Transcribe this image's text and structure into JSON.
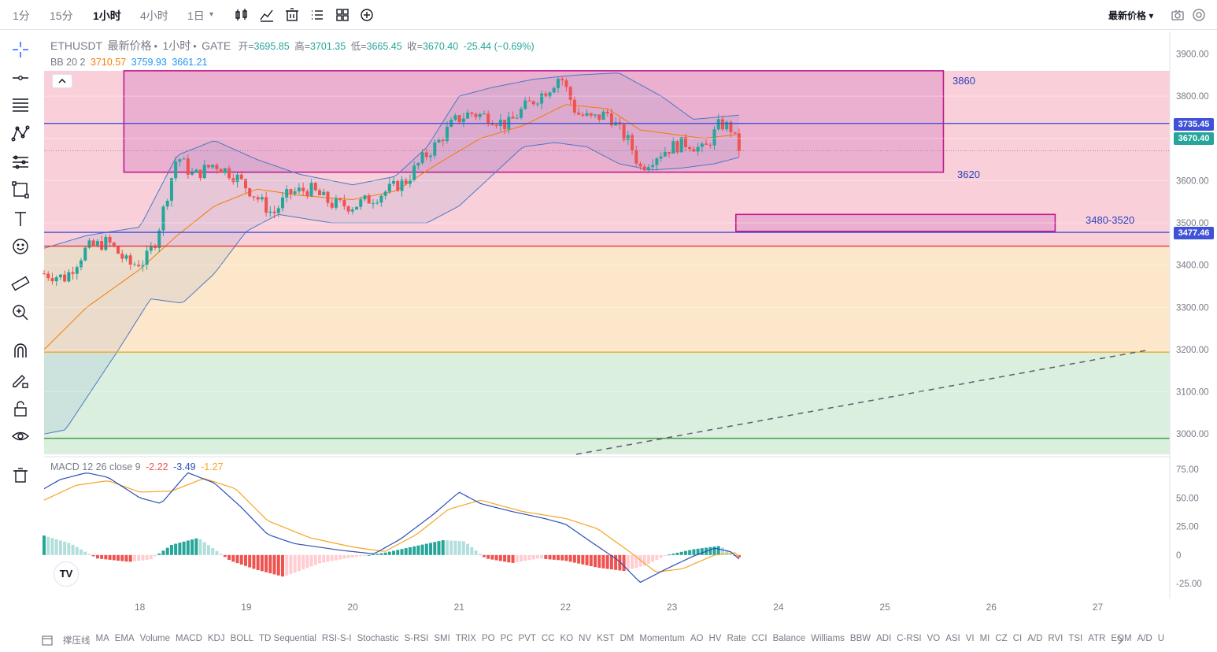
{
  "toolbar": {
    "timeframes": [
      "1分",
      "15分",
      "1小时",
      "4小时",
      "1日"
    ],
    "active_timeframe": "1小时",
    "dropdown_symbol": "▾",
    "icons": [
      "bar-style-icon",
      "indicator-icon",
      "replay-icon",
      "list-icon",
      "layout-icon",
      "add-icon"
    ],
    "price_type": "最新价格 ▾",
    "right_icons": [
      "camera-icon",
      "settings-icon"
    ]
  },
  "left_tools": [
    "crosshair-icon",
    "horizontal-line-icon",
    "fib-icon",
    "pattern-icon",
    "channel-icon",
    "rectangle-icon",
    "text-icon",
    "emoji-icon",
    "ruler-icon",
    "zoom-icon",
    "magnet-icon",
    "pencil-lock-icon",
    "lock-icon",
    "eye-icon",
    "trash-icon"
  ],
  "legend": {
    "symbol": "ETHUSDT",
    "price_source": "最新价格",
    "interval": "1小时",
    "exchange": "GATE",
    "open_label": "开=",
    "open": "3695.85",
    "high_label": "高=",
    "high": "3701.35",
    "low_label": "低=",
    "low": "3665.45",
    "close_label": "收=",
    "close": "3670.40",
    "change": "-25.44 (−0.69%)",
    "bb_label": "BB 20 2",
    "bb_mid": "3710.57",
    "bb_upper": "3759.93",
    "bb_lower": "3661.21",
    "macd_label": "MACD 12 26 close 9",
    "macd_hist": "-2.22",
    "macd_line": "-3.49",
    "macd_signal": "-1.27"
  },
  "colors": {
    "up": "#26a69a",
    "down": "#ef5350",
    "bb_mid": "#f57c00",
    "bb_band": "#4b78c2",
    "hline_blue": "#3f51d6",
    "hline_red": "#e53935",
    "hline_orange": "#f5a623",
    "hline_green": "#43a047",
    "zone_pink": "#f8c8d4",
    "zone_orange": "#fde3c2",
    "zone_green": "#d5ecd9",
    "rect": "#c2188f"
  },
  "annotations": {
    "zone_top_label": "3860",
    "zone_bottom_label": "3620",
    "small_zone_label": "3480-3520",
    "tag_upper": "3735.45",
    "tag_last": "3670.40",
    "tag_lower": "3477.46"
  },
  "chart_data": {
    "type": "candlestick",
    "price_axis": {
      "ticks": [
        "3900.00",
        "3800.00",
        "3700.00",
        "3600.00",
        "3500.00",
        "3400.00",
        "3300.00",
        "3200.00",
        "3100.00",
        "3000.00"
      ],
      "range": [
        2952,
        3953
      ]
    },
    "macd_axis": {
      "ticks": [
        "75.00",
        "50.00",
        "25.00",
        "0",
        "-25.00"
      ],
      "range": [
        -38,
        86
      ]
    },
    "time_axis": {
      "ticks": [
        "18",
        "19",
        "20",
        "21",
        "22",
        "23",
        "24",
        "25",
        "26",
        "27"
      ],
      "day_start": 17.1
    },
    "horizontal_levels": [
      {
        "price": 3735.45,
        "color": "hline_blue"
      },
      {
        "price": 3477.46,
        "color": "hline_blue"
      },
      {
        "price": 3445,
        "color": "hline_red"
      },
      {
        "price": 3194,
        "color": "hline_orange"
      },
      {
        "price": 2990,
        "color": "hline_green"
      }
    ],
    "zones": [
      {
        "from": 3445,
        "to": 3860,
        "color": "zone_pink"
      },
      {
        "from": 3194,
        "to": 3445,
        "color": "zone_orange"
      },
      {
        "from": 2952,
        "to": 3194,
        "color": "zone_green"
      }
    ],
    "rectangles": [
      {
        "t1": 17.85,
        "t2": 25.55,
        "p1": 3620,
        "p2": 3860
      },
      {
        "t1": 23.6,
        "t2": 26.6,
        "p1": 3480,
        "p2": 3520
      }
    ],
    "trendline": {
      "t1": 22.1,
      "p1": 2952,
      "t2": 27.45,
      "p2": 3198,
      "dashed": true
    },
    "candle_anchors": [
      [
        17.1,
        3380
      ],
      [
        17.3,
        3370
      ],
      [
        17.5,
        3440
      ],
      [
        17.7,
        3455
      ],
      [
        17.9,
        3400
      ],
      [
        18.05,
        3410
      ],
      [
        18.15,
        3460
      ],
      [
        18.25,
        3560
      ],
      [
        18.35,
        3660
      ],
      [
        18.5,
        3610
      ],
      [
        18.7,
        3640
      ],
      [
        18.9,
        3610
      ],
      [
        19.1,
        3560
      ],
      [
        19.25,
        3520
      ],
      [
        19.4,
        3570
      ],
      [
        19.6,
        3580
      ],
      [
        19.8,
        3545
      ],
      [
        20.0,
        3540
      ],
      [
        20.2,
        3560
      ],
      [
        20.35,
        3580
      ],
      [
        20.5,
        3600
      ],
      [
        20.65,
        3650
      ],
      [
        20.8,
        3690
      ],
      [
        20.95,
        3740
      ],
      [
        21.1,
        3760
      ],
      [
        21.3,
        3750
      ],
      [
        21.45,
        3730
      ],
      [
        21.6,
        3770
      ],
      [
        21.75,
        3800
      ],
      [
        21.85,
        3820
      ],
      [
        21.95,
        3850
      ],
      [
        22.1,
        3760
      ],
      [
        22.25,
        3745
      ],
      [
        22.4,
        3760
      ],
      [
        22.5,
        3720
      ],
      [
        22.6,
        3690
      ],
      [
        22.7,
        3630
      ],
      [
        22.85,
        3660
      ],
      [
        23.0,
        3680
      ],
      [
        23.15,
        3690
      ],
      [
        23.3,
        3670
      ],
      [
        23.45,
        3735
      ],
      [
        23.55,
        3725
      ],
      [
        23.63,
        3670
      ]
    ],
    "bb_mid": [
      [
        17.1,
        3200
      ],
      [
        17.5,
        3300
      ],
      [
        18.0,
        3390
      ],
      [
        18.35,
        3470
      ],
      [
        18.7,
        3540
      ],
      [
        19.1,
        3580
      ],
      [
        19.5,
        3565
      ],
      [
        20.0,
        3555
      ],
      [
        20.4,
        3575
      ],
      [
        20.8,
        3640
      ],
      [
        21.2,
        3700
      ],
      [
        21.6,
        3730
      ],
      [
        22.0,
        3780
      ],
      [
        22.4,
        3770
      ],
      [
        22.7,
        3720
      ],
      [
        23.0,
        3710
      ],
      [
        23.3,
        3700
      ],
      [
        23.63,
        3710
      ]
    ],
    "bb_upper": [
      [
        17.1,
        3440
      ],
      [
        17.5,
        3470
      ],
      [
        18.0,
        3490
      ],
      [
        18.35,
        3660
      ],
      [
        18.7,
        3695
      ],
      [
        19.1,
        3650
      ],
      [
        19.5,
        3615
      ],
      [
        20.0,
        3590
      ],
      [
        20.4,
        3610
      ],
      [
        20.7,
        3680
      ],
      [
        21.0,
        3800
      ],
      [
        21.3,
        3820
      ],
      [
        21.7,
        3840
      ],
      [
        22.1,
        3850
      ],
      [
        22.5,
        3855
      ],
      [
        22.9,
        3800
      ],
      [
        23.2,
        3745
      ],
      [
        23.63,
        3755
      ]
    ],
    "bb_lower": [
      [
        17.1,
        3000
      ],
      [
        17.3,
        3010
      ],
      [
        17.8,
        3200
      ],
      [
        18.1,
        3320
      ],
      [
        18.4,
        3310
      ],
      [
        18.7,
        3380
      ],
      [
        19.0,
        3480
      ],
      [
        19.3,
        3520
      ],
      [
        19.8,
        3500
      ],
      [
        20.3,
        3500
      ],
      [
        20.7,
        3500
      ],
      [
        21.0,
        3540
      ],
      [
        21.3,
        3610
      ],
      [
        21.6,
        3680
      ],
      [
        21.9,
        3690
      ],
      [
        22.2,
        3680
      ],
      [
        22.5,
        3640
      ],
      [
        22.8,
        3625
      ],
      [
        23.1,
        3630
      ],
      [
        23.4,
        3640
      ],
      [
        23.63,
        3655
      ]
    ],
    "macd_line": [
      [
        17.1,
        58
      ],
      [
        17.25,
        66
      ],
      [
        17.5,
        72
      ],
      [
        17.7,
        68
      ],
      [
        18.0,
        50
      ],
      [
        18.2,
        45
      ],
      [
        18.45,
        72
      ],
      [
        18.7,
        63
      ],
      [
        18.95,
        42
      ],
      [
        19.2,
        18
      ],
      [
        19.45,
        10
      ],
      [
        19.9,
        4
      ],
      [
        20.2,
        1
      ],
      [
        20.45,
        14
      ],
      [
        20.75,
        35
      ],
      [
        21.0,
        55
      ],
      [
        21.2,
        45
      ],
      [
        21.5,
        38
      ],
      [
        21.8,
        32
      ],
      [
        22.0,
        27
      ],
      [
        22.2,
        14
      ],
      [
        22.5,
        -5
      ],
      [
        22.7,
        -24
      ],
      [
        22.95,
        -12
      ],
      [
        23.2,
        -1
      ],
      [
        23.4,
        6
      ],
      [
        23.55,
        3
      ],
      [
        23.63,
        -3.49
      ]
    ],
    "macd_signal": [
      [
        17.1,
        48
      ],
      [
        17.4,
        61
      ],
      [
        17.7,
        65
      ],
      [
        18.0,
        55
      ],
      [
        18.3,
        56
      ],
      [
        18.6,
        67
      ],
      [
        18.9,
        58
      ],
      [
        19.2,
        30
      ],
      [
        19.6,
        15
      ],
      [
        20.0,
        7
      ],
      [
        20.3,
        3
      ],
      [
        20.6,
        18
      ],
      [
        20.9,
        40
      ],
      [
        21.2,
        48
      ],
      [
        21.6,
        38
      ],
      [
        22.0,
        32
      ],
      [
        22.3,
        23
      ],
      [
        22.6,
        3
      ],
      [
        22.85,
        -15
      ],
      [
        23.1,
        -12
      ],
      [
        23.4,
        0
      ],
      [
        23.6,
        2
      ],
      [
        23.63,
        -1.27
      ]
    ],
    "macd_hist_anchors": [
      [
        17.1,
        17
      ],
      [
        17.35,
        10
      ],
      [
        17.6,
        -3
      ],
      [
        17.9,
        -6
      ],
      [
        18.1,
        -4
      ],
      [
        18.3,
        9
      ],
      [
        18.55,
        15
      ],
      [
        18.85,
        -5
      ],
      [
        19.1,
        -13
      ],
      [
        19.35,
        -19
      ],
      [
        19.7,
        -7
      ],
      [
        20.0,
        -2
      ],
      [
        20.3,
        2
      ],
      [
        20.6,
        8
      ],
      [
        20.85,
        13
      ],
      [
        21.05,
        12
      ],
      [
        21.25,
        -3
      ],
      [
        21.5,
        -7
      ],
      [
        21.75,
        -3
      ],
      [
        22.0,
        -5
      ],
      [
        22.3,
        -11
      ],
      [
        22.55,
        -14
      ],
      [
        22.75,
        -9
      ],
      [
        22.95,
        0
      ],
      [
        23.2,
        5
      ],
      [
        23.45,
        8
      ],
      [
        23.63,
        -2.22
      ]
    ]
  },
  "bottom_indicators": [
    "撑压线",
    "MA",
    "EMA",
    "Volume",
    "MACD",
    "KDJ",
    "BOLL",
    "TD Sequential",
    "RSI-S-I",
    "Stochastic",
    "S-RSI",
    "SMI",
    "TRIX",
    "PO",
    "PC",
    "PVT",
    "CC",
    "KO",
    "NV",
    "KST",
    "DM",
    "Momentum",
    "AO",
    "HV",
    "Rate",
    "CCI",
    "Balance",
    "Williams",
    "BBW",
    "ADI",
    "C-RSI",
    "VO",
    "ASI",
    "VI",
    "MI",
    "CZ",
    "CI",
    "A/D",
    "RVI",
    "TSI",
    "ATR",
    "EOM",
    "A/D",
    "U"
  ],
  "logo_text": "TV"
}
